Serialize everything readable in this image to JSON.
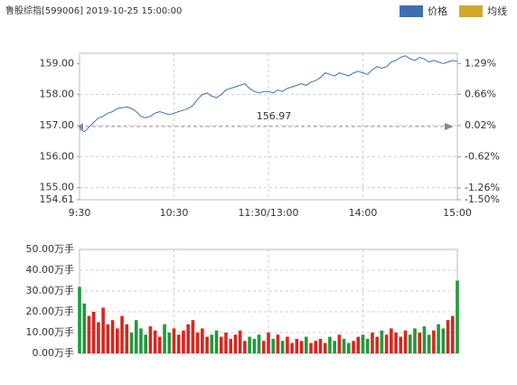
{
  "chart_data": [
    {
      "type": "line",
      "title": "鲁股综指[599006] 2019-10-25 15:00:00",
      "legend": [
        {
          "name": "价格",
          "color": "#3e6fb0"
        },
        {
          "name": "均线",
          "color": "#d4a72c"
        }
      ],
      "x": [
        0,
        3,
        6,
        9,
        12,
        15,
        18,
        21,
        24,
        27,
        30,
        33,
        36,
        39,
        42,
        45,
        48,
        51,
        54,
        57,
        60,
        63,
        66,
        69,
        72,
        75,
        78,
        81,
        84,
        87,
        90,
        93,
        96,
        99,
        102,
        105,
        108,
        111,
        114,
        117,
        120,
        123,
        126,
        129,
        132,
        135,
        138,
        141,
        144,
        147,
        150,
        153,
        156,
        159,
        162,
        165,
        168,
        171,
        174,
        177,
        180,
        183,
        186,
        189,
        192,
        195,
        198,
        201,
        204,
        207,
        210,
        213,
        216,
        219,
        222,
        225,
        228,
        231,
        234,
        237,
        240
      ],
      "xlim": [
        0,
        240
      ],
      "xticks": [
        {
          "value": 0,
          "label": "9:30"
        },
        {
          "value": 60,
          "label": "10:30"
        },
        {
          "value": 120,
          "label": "11:30/13:00"
        },
        {
          "value": 180,
          "label": "14:00"
        },
        {
          "value": 240,
          "label": "15:00"
        }
      ],
      "series": [
        {
          "name": "价格",
          "color": "#3e6fb0",
          "values": [
            156.9,
            156.8,
            156.95,
            157.1,
            157.25,
            157.3,
            157.4,
            157.45,
            157.55,
            157.58,
            157.6,
            157.55,
            157.45,
            157.3,
            157.25,
            157.3,
            157.4,
            157.45,
            157.4,
            157.35,
            157.4,
            157.45,
            157.5,
            157.55,
            157.65,
            157.85,
            158.0,
            158.05,
            157.95,
            157.9,
            158.0,
            158.15,
            158.2,
            158.25,
            158.3,
            158.35,
            158.2,
            158.1,
            158.05,
            158.1,
            158.1,
            158.05,
            158.15,
            158.1,
            158.2,
            158.25,
            158.3,
            158.35,
            158.3,
            158.4,
            158.45,
            158.55,
            158.7,
            158.65,
            158.6,
            158.7,
            158.65,
            158.6,
            158.7,
            158.75,
            158.7,
            158.65,
            158.8,
            158.9,
            158.85,
            158.9,
            159.05,
            159.1,
            159.2,
            159.25,
            159.15,
            159.1,
            159.2,
            159.15,
            159.05,
            159.1,
            159.05,
            159.0,
            159.05,
            159.1,
            159.07
          ]
        }
      ],
      "ylim": [
        154.61,
        159.33
      ],
      "yticks": [
        {
          "value": 159,
          "label": "159.00"
        },
        {
          "value": 158,
          "label": "158.00"
        },
        {
          "value": 157,
          "label": "157.00"
        },
        {
          "value": 156,
          "label": "156.00"
        },
        {
          "value": 155,
          "label": "155.00"
        },
        {
          "value": 154.61,
          "label": "154.61"
        }
      ],
      "y2lim": [
        -1.5,
        1.5
      ],
      "y2ticks": [
        {
          "value": 1.29,
          "label": "1.29%"
        },
        {
          "value": 0.66,
          "label": "0.66%"
        },
        {
          "value": 0.02,
          "label": "0.02%"
        },
        {
          "value": -0.62,
          "label": "-0.62%"
        },
        {
          "value": -1.26,
          "label": "-1.26%"
        },
        {
          "value": -1.5,
          "label": "-1.50%"
        }
      ],
      "prev_close": 156.97,
      "up_color": "#d9251d",
      "down_color": "#1e9a3c",
      "grid": true
    },
    {
      "type": "bar",
      "values": [
        32,
        24,
        18,
        20,
        15,
        22,
        14,
        16,
        12,
        18,
        14,
        10,
        16,
        12,
        9,
        13,
        11,
        8,
        14,
        10,
        12,
        9,
        11,
        14,
        16,
        10,
        12,
        8,
        9,
        11,
        8,
        10,
        7,
        9,
        11,
        6,
        8,
        7,
        9,
        6,
        10,
        7,
        9,
        6,
        8,
        5,
        7,
        6,
        8,
        5,
        6,
        7,
        5,
        8,
        6,
        9,
        7,
        5,
        6,
        8,
        9,
        7,
        10,
        8,
        11,
        9,
        12,
        10,
        8,
        11,
        9,
        12,
        10,
        13,
        9,
        11,
        14,
        12,
        16,
        18,
        35
      ],
      "ylim": [
        0,
        50
      ],
      "yticks": [
        {
          "value": 50,
          "label": "50.00万手"
        },
        {
          "value": 40,
          "label": "40.00万手"
        },
        {
          "value": 30,
          "label": "30.00万手"
        },
        {
          "value": 20,
          "label": "20.00万手"
        },
        {
          "value": 10,
          "label": "10.00万手"
        },
        {
          "value": 0,
          "label": "0.00万手"
        }
      ],
      "up_color": "#d9251d",
      "down_color": "#1e9a3c",
      "grid": true
    }
  ]
}
